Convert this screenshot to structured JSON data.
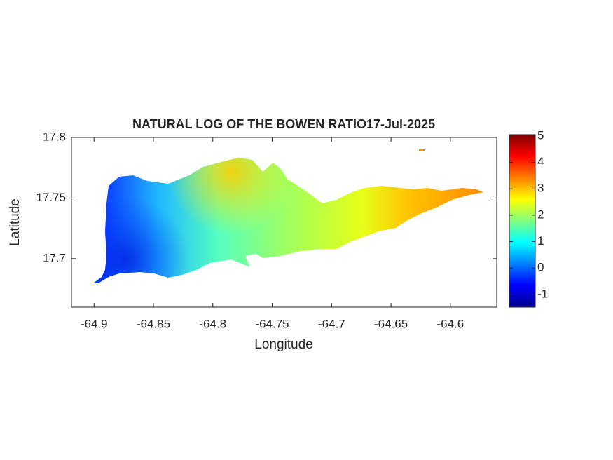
{
  "chart_data": {
    "type": "heatmap",
    "title": "NATURAL LOG OF THE BOWEN RATIO17-Jul-2025",
    "x_label": "Longitude",
    "y_label": "Latitude",
    "xlim": [
      -64.919,
      -64.561
    ],
    "xticks": [
      -64.9,
      -64.85,
      -64.8,
      -64.75,
      -64.7,
      -64.65,
      -64.6
    ],
    "ylim": [
      17.66,
      17.8
    ],
    "yticks": [
      17.7,
      17.75,
      17.8
    ],
    "colorbar": {
      "lim": [
        -1.48,
        5.05
      ],
      "ticks": [
        -1,
        0,
        1,
        2,
        3,
        4,
        5
      ],
      "colormap": "jet"
    }
  }
}
